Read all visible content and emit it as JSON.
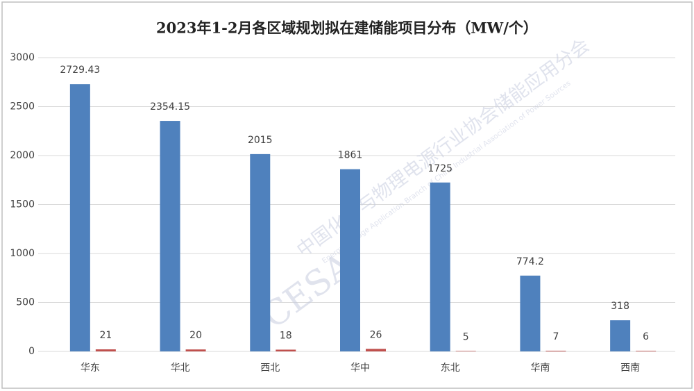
{
  "chart_data": {
    "type": "bar",
    "title": "2023年1-2月各区域规划拟在建储能项目分布（MW/个）",
    "categories": [
      "华东",
      "华北",
      "西北",
      "华中",
      "东北",
      "华南",
      "西南"
    ],
    "series": [
      {
        "color": "#4f81bd",
        "values": [
          2729.43,
          2354.15,
          2015,
          1861,
          1725,
          774.2,
          318
        ]
      },
      {
        "color": "#c0504d",
        "values": [
          21,
          20,
          18,
          26,
          5,
          7,
          6
        ]
      }
    ],
    "ylim": [
      0,
      3000
    ],
    "yticks": [
      0,
      500,
      1000,
      1500,
      2000,
      2500,
      3000
    ],
    "grid": true,
    "annotations": [
      "CESA",
      "中国化学与物理电源行业协会储能应用分会",
      "Energy Storage Application Branch of China Industrial Association of Power Sources"
    ]
  }
}
